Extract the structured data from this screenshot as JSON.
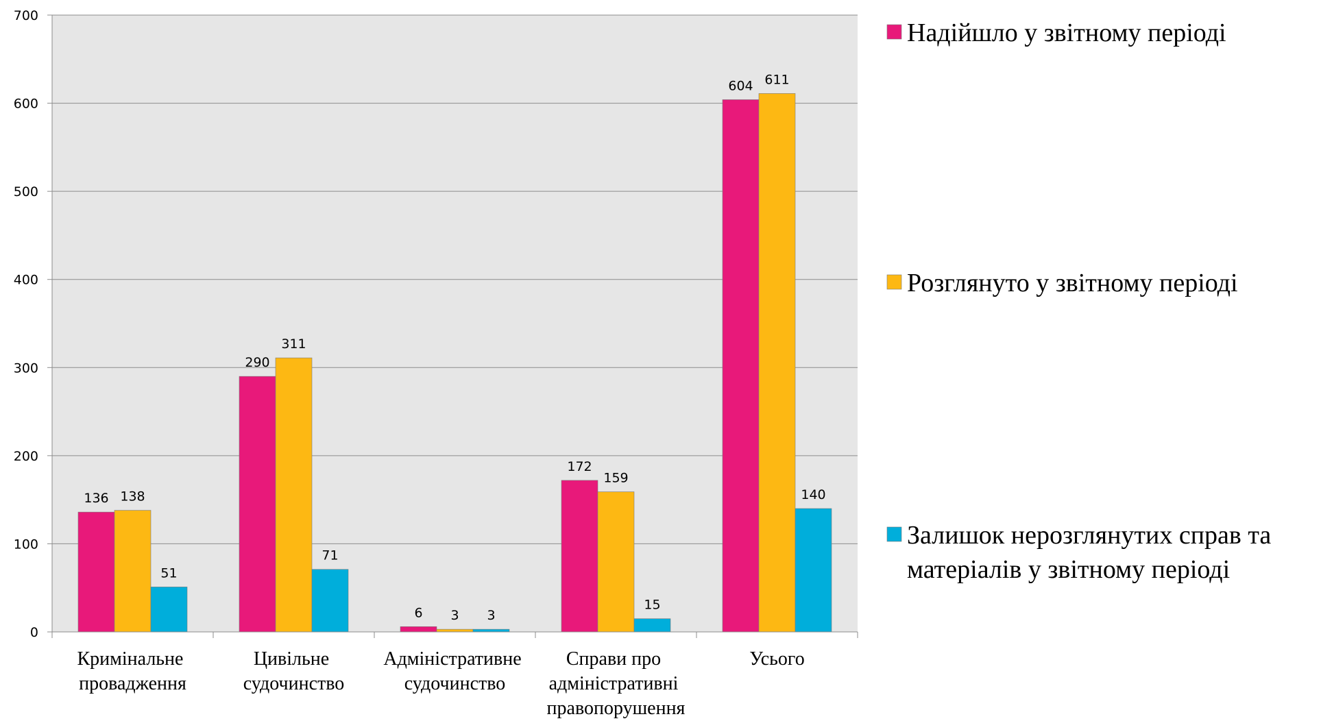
{
  "chart_data": {
    "type": "bar",
    "categories": [
      "Кримінальне провадження",
      "Цивільне судочинство",
      "Адміністративне судочинство",
      "Справи про адміністративні правопорушення",
      "Усього"
    ],
    "series": [
      {
        "name": "Надійшло у звітному періоді",
        "color": "#e8197a",
        "values": [
          136,
          290,
          6,
          172,
          604
        ]
      },
      {
        "name": "Розглянуто у звітному періоді",
        "color": "#fdb813",
        "values": [
          138,
          311,
          3,
          159,
          611
        ]
      },
      {
        "name": "Залишок нерозглянутих справ та матеріалів у звітному періоді",
        "color": "#00aedb",
        "values": [
          51,
          71,
          3,
          15,
          140
        ]
      }
    ],
    "ylim": [
      0,
      700
    ],
    "yticks": [
      0,
      100,
      200,
      300,
      400,
      500,
      600,
      700
    ],
    "grid": true,
    "legend": "right"
  }
}
